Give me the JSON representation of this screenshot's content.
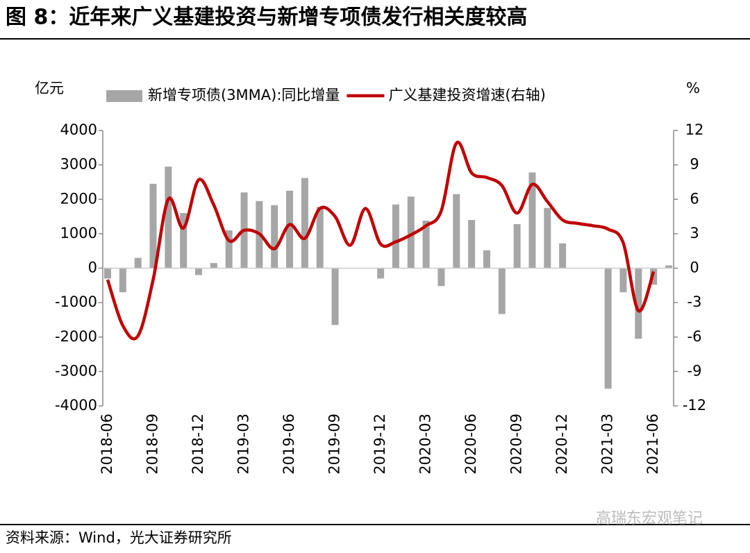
{
  "chart_data": {
    "type": "bar_line",
    "title": "图 8：近年来广义基建投资与新增专项债发行相关度较高",
    "y_label": "亿元",
    "y2_label": "%",
    "source": "资料来源：Wind，光大证券研究所",
    "watermark": "高瑞东宏观笔记",
    "categories": [
      "2018-06",
      null,
      null,
      "2018-09",
      null,
      null,
      "2018-12",
      null,
      null,
      "2019-03",
      null,
      null,
      "2019-06",
      null,
      null,
      "2019-09",
      null,
      null,
      "2019-12",
      null,
      null,
      "2020-03",
      null,
      null,
      "2020-06",
      null,
      null,
      "2020-09",
      null,
      null,
      "2020-12",
      null,
      null,
      "2021-03",
      null,
      null,
      "2021-06",
      null
    ],
    "series": [
      {
        "name": "新增专项债(3MMA):同比增量",
        "type": "bar",
        "color": "#a6a6a6",
        "values": [
          -300,
          -700,
          300,
          2450,
          2950,
          1600,
          -200,
          150,
          1100,
          2200,
          1950,
          1830,
          2250,
          2620,
          1780,
          -1650,
          0,
          0,
          -300,
          1850,
          2080,
          1380,
          -520,
          2150,
          1400,
          520,
          -1330,
          1280,
          2780,
          1750,
          720,
          0,
          0,
          -3500,
          -700,
          -2050,
          -480,
          80
        ]
      },
      {
        "name": "广义基建投资增速(右轴)",
        "type": "line",
        "axis": "y2",
        "color": "#c00000",
        "values": [
          -1,
          -5,
          -5.9,
          -1,
          6,
          3.5,
          7.7,
          5.5,
          2.4,
          3.3,
          3.0,
          1.7,
          3.8,
          2.6,
          5.2,
          4.5,
          2.0,
          5.2,
          2.1,
          2.3,
          2.9,
          3.7,
          5.0,
          10.9,
          8.3,
          7.9,
          7.2,
          4.8,
          7.3,
          5.8,
          4.2,
          3.9,
          3.7,
          3.4,
          2.2,
          -3.7,
          -0.3,
          null
        ]
      }
    ],
    "ylim": [
      -4000,
      4000
    ],
    "yticks": [
      -4000,
      -3000,
      -2000,
      -1000,
      0,
      1000,
      2000,
      3000,
      4000
    ],
    "y2lim": [
      -12,
      12
    ],
    "y2ticks": [
      -12,
      -9,
      -6,
      -3,
      0,
      3,
      6,
      9,
      12
    ]
  }
}
